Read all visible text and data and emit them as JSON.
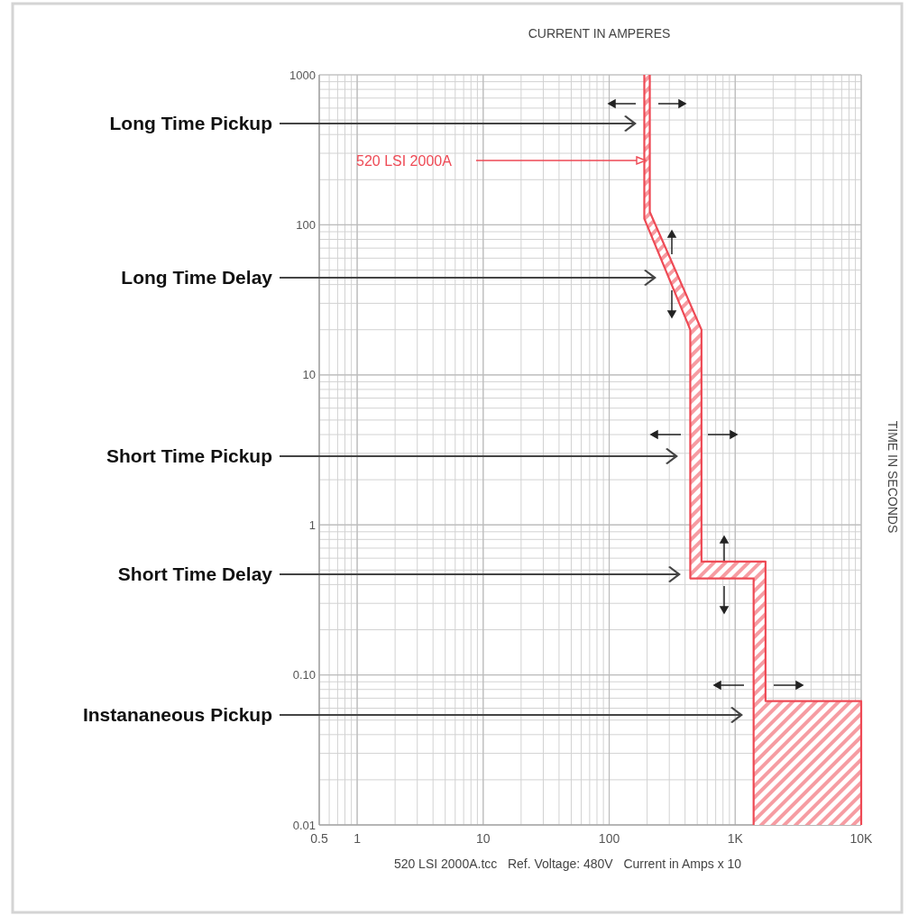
{
  "chart_data": {
    "type": "line",
    "xlabel": "CURRENT IN AMPERES",
    "ylabel": "TIME IN SECONDS",
    "log": "xy",
    "grid": true,
    "xlim": [
      0.5,
      10000
    ],
    "ylim": [
      0.01,
      1000
    ],
    "xticks": [
      0.5,
      1,
      10,
      100,
      {
        "value": 1000,
        "label": "1K"
      },
      {
        "value": 10000,
        "label": "10K"
      }
    ],
    "yticks": [
      {
        "value": 0.01,
        "label": "0.01"
      },
      {
        "value": 0.1,
        "label": "0.10"
      },
      1,
      10,
      100,
      1000
    ],
    "series": [
      {
        "color": "#ee4a55",
        "x": [
          190,
          190,
          440,
          440,
          1400,
          1400
        ],
        "values": [
          1000,
          110,
          20,
          0.44,
          0.44,
          0.01
        ]
      },
      {
        "color": "#ee4a55",
        "x": [
          210,
          210,
          540,
          540,
          1740,
          1740,
          10000,
          10000
        ],
        "values": [
          1000,
          122,
          20,
          0.57,
          0.57,
          0.067,
          0.067,
          0.01
        ]
      }
    ],
    "annotations": [
      "Long Time Pickup",
      "520 LSI 2000A",
      "Long Time Delay",
      "Short Time Pickup",
      "Short Time Delay",
      "Instananeous Pickup",
      "520 LSI 2000A.tcc   Ref. Voltage: 480V   Current in Amps x 10"
    ]
  }
}
